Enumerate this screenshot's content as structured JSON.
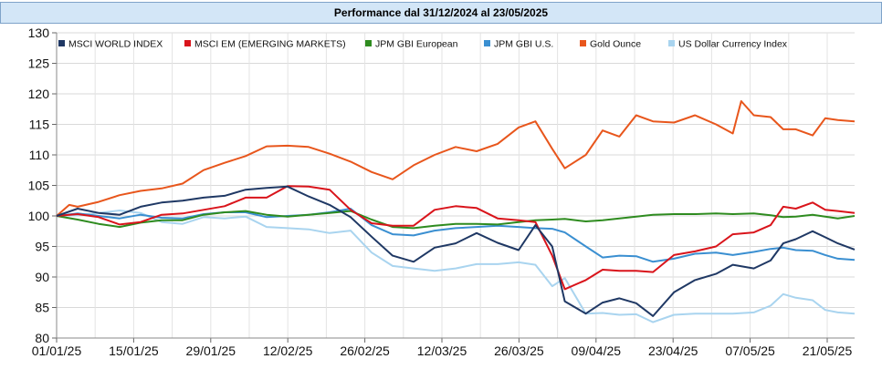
{
  "title": "Performance dal 31/12/2024 al 23/05/2025",
  "chart_data": {
    "type": "line",
    "title": "Performance dal 31/12/2024 al 23/05/2025",
    "xlabel": "",
    "ylabel": "",
    "ylim": [
      80,
      130
    ],
    "yticks": [
      80,
      85,
      90,
      95,
      100,
      105,
      110,
      115,
      120,
      125,
      130
    ],
    "xticks": [
      "01/01/25",
      "15/01/25",
      "29/01/25",
      "12/02/25",
      "26/02/25",
      "12/03/25",
      "26/03/25",
      "09/04/25",
      "23/04/25",
      "07/05/25",
      "21/05/25"
    ],
    "grid": true,
    "legend_position": "top",
    "x_start": "31/12/2024",
    "x_end": "23/05/2025",
    "series": [
      {
        "name": "MSCI WORLD INDEX",
        "color": "#1f3864",
        "points": [
          [
            0,
            100
          ],
          [
            5,
            101.2
          ],
          [
            10,
            100.5
          ],
          [
            15,
            100.2
          ],
          [
            20,
            101.5
          ],
          [
            25,
            102.2
          ],
          [
            30,
            102.5
          ],
          [
            35,
            103.0
          ],
          [
            40,
            103.3
          ],
          [
            45,
            104.3
          ],
          [
            50,
            104.6
          ],
          [
            55,
            104.8
          ],
          [
            60,
            103.2
          ],
          [
            65,
            101.8
          ],
          [
            70,
            99.8
          ],
          [
            75,
            96.6
          ],
          [
            80,
            93.5
          ],
          [
            85,
            92.5
          ],
          [
            90,
            94.8
          ],
          [
            95,
            95.5
          ],
          [
            100,
            97.2
          ],
          [
            105,
            95.6
          ],
          [
            110,
            94.4
          ],
          [
            114,
            98.5
          ],
          [
            118,
            95.0
          ],
          [
            121,
            86.0
          ],
          [
            126,
            84.0
          ],
          [
            130,
            85.8
          ],
          [
            134,
            86.5
          ],
          [
            138,
            85.7
          ],
          [
            142,
            83.6
          ],
          [
            147,
            87.5
          ],
          [
            152,
            89.5
          ],
          [
            157,
            90.5
          ],
          [
            161,
            92.0
          ],
          [
            166,
            91.4
          ],
          [
            170,
            92.7
          ],
          [
            173,
            95.5
          ],
          [
            176,
            96.2
          ],
          [
            180,
            97.5
          ],
          [
            183,
            96.5
          ],
          [
            186,
            95.5
          ],
          [
            190,
            94.5
          ]
        ]
      },
      {
        "name": "MSCI EM (EMERGING MARKETS)",
        "color": "#d9141b",
        "points": [
          [
            0,
            100
          ],
          [
            5,
            100.3
          ],
          [
            10,
            99.8
          ],
          [
            15,
            98.6
          ],
          [
            20,
            99.0
          ],
          [
            25,
            100.2
          ],
          [
            30,
            100.4
          ],
          [
            35,
            101.0
          ],
          [
            40,
            101.6
          ],
          [
            45,
            103.0
          ],
          [
            50,
            103.0
          ],
          [
            55,
            104.9
          ],
          [
            60,
            104.8
          ],
          [
            65,
            104.3
          ],
          [
            70,
            101.0
          ],
          [
            75,
            98.8
          ],
          [
            80,
            98.4
          ],
          [
            85,
            98.4
          ],
          [
            90,
            101.0
          ],
          [
            95,
            101.6
          ],
          [
            100,
            101.3
          ],
          [
            105,
            99.6
          ],
          [
            110,
            99.3
          ],
          [
            114,
            99.0
          ],
          [
            118,
            93.5
          ],
          [
            121,
            88.0
          ],
          [
            126,
            89.5
          ],
          [
            130,
            91.2
          ],
          [
            134,
            91.0
          ],
          [
            138,
            91.0
          ],
          [
            142,
            90.8
          ],
          [
            147,
            93.6
          ],
          [
            152,
            94.2
          ],
          [
            157,
            95.0
          ],
          [
            161,
            97.0
          ],
          [
            166,
            97.3
          ],
          [
            170,
            98.5
          ],
          [
            173,
            101.5
          ],
          [
            176,
            101.2
          ],
          [
            180,
            102.2
          ],
          [
            183,
            101.0
          ],
          [
            186,
            100.8
          ],
          [
            190,
            100.5
          ]
        ]
      },
      {
        "name": "JPM GBI European",
        "color": "#2e8b1f",
        "points": [
          [
            0,
            100
          ],
          [
            5,
            99.4
          ],
          [
            10,
            98.7
          ],
          [
            15,
            98.2
          ],
          [
            20,
            98.9
          ],
          [
            25,
            99.3
          ],
          [
            30,
            99.3
          ],
          [
            35,
            100.2
          ],
          [
            40,
            100.6
          ],
          [
            45,
            100.8
          ],
          [
            50,
            100.2
          ],
          [
            55,
            99.9
          ],
          [
            60,
            100.2
          ],
          [
            65,
            100.5
          ],
          [
            70,
            100.8
          ],
          [
            75,
            99.4
          ],
          [
            80,
            98.2
          ],
          [
            85,
            98.0
          ],
          [
            90,
            98.4
          ],
          [
            95,
            98.7
          ],
          [
            100,
            98.7
          ],
          [
            105,
            98.6
          ],
          [
            110,
            99.0
          ],
          [
            114,
            99.3
          ],
          [
            118,
            99.4
          ],
          [
            121,
            99.5
          ],
          [
            126,
            99.1
          ],
          [
            130,
            99.3
          ],
          [
            134,
            99.6
          ],
          [
            138,
            99.9
          ],
          [
            142,
            100.2
          ],
          [
            147,
            100.3
          ],
          [
            152,
            100.3
          ],
          [
            157,
            100.4
          ],
          [
            161,
            100.3
          ],
          [
            166,
            100.4
          ],
          [
            170,
            100.1
          ],
          [
            173,
            99.8
          ],
          [
            176,
            99.9
          ],
          [
            180,
            100.2
          ],
          [
            183,
            99.9
          ],
          [
            186,
            99.6
          ],
          [
            190,
            100.0
          ]
        ]
      },
      {
        "name": "JPM GBI U.S.",
        "color": "#3a8fd1",
        "points": [
          [
            0,
            100
          ],
          [
            5,
            100.4
          ],
          [
            10,
            100.0
          ],
          [
            15,
            99.6
          ],
          [
            20,
            100.2
          ],
          [
            25,
            99.7
          ],
          [
            30,
            99.6
          ],
          [
            35,
            100.3
          ],
          [
            40,
            100.6
          ],
          [
            45,
            100.6
          ],
          [
            50,
            99.8
          ],
          [
            55,
            100.0
          ],
          [
            60,
            100.2
          ],
          [
            65,
            100.6
          ],
          [
            70,
            101.2
          ],
          [
            75,
            98.5
          ],
          [
            80,
            97.0
          ],
          [
            85,
            96.8
          ],
          [
            90,
            97.6
          ],
          [
            95,
            98.0
          ],
          [
            100,
            98.2
          ],
          [
            105,
            98.4
          ],
          [
            110,
            98.2
          ],
          [
            114,
            98.0
          ],
          [
            118,
            97.9
          ],
          [
            121,
            97.3
          ],
          [
            126,
            95.0
          ],
          [
            130,
            93.2
          ],
          [
            134,
            93.5
          ],
          [
            138,
            93.4
          ],
          [
            142,
            92.5
          ],
          [
            147,
            93.0
          ],
          [
            152,
            93.8
          ],
          [
            157,
            94.0
          ],
          [
            161,
            93.6
          ],
          [
            166,
            94.1
          ],
          [
            170,
            94.6
          ],
          [
            173,
            94.8
          ],
          [
            176,
            94.4
          ],
          [
            180,
            94.3
          ],
          [
            183,
            93.6
          ],
          [
            186,
            93.0
          ],
          [
            190,
            92.8
          ]
        ]
      },
      {
        "name": "Gold Ounce",
        "color": "#e8561c",
        "points": [
          [
            0,
            100
          ],
          [
            3,
            101.8
          ],
          [
            5,
            101.5
          ],
          [
            10,
            102.3
          ],
          [
            15,
            103.4
          ],
          [
            20,
            104.1
          ],
          [
            25,
            104.5
          ],
          [
            30,
            105.3
          ],
          [
            35,
            107.5
          ],
          [
            40,
            108.7
          ],
          [
            45,
            109.8
          ],
          [
            50,
            111.4
          ],
          [
            55,
            111.5
          ],
          [
            60,
            111.3
          ],
          [
            65,
            110.2
          ],
          [
            70,
            108.9
          ],
          [
            75,
            107.2
          ],
          [
            80,
            106.0
          ],
          [
            85,
            108.3
          ],
          [
            90,
            110.0
          ],
          [
            95,
            111.3
          ],
          [
            100,
            110.6
          ],
          [
            105,
            111.8
          ],
          [
            110,
            114.5
          ],
          [
            114,
            115.5
          ],
          [
            118,
            111.0
          ],
          [
            121,
            107.8
          ],
          [
            126,
            110.0
          ],
          [
            130,
            114.0
          ],
          [
            134,
            113.0
          ],
          [
            138,
            116.5
          ],
          [
            142,
            115.5
          ],
          [
            147,
            115.3
          ],
          [
            152,
            116.5
          ],
          [
            157,
            115.0
          ],
          [
            161,
            113.5
          ],
          [
            163,
            118.8
          ],
          [
            166,
            116.5
          ],
          [
            170,
            116.2
          ],
          [
            173,
            114.2
          ],
          [
            176,
            114.2
          ],
          [
            180,
            113.2
          ],
          [
            183,
            116.0
          ],
          [
            186,
            115.7
          ],
          [
            190,
            115.5
          ]
        ]
      },
      {
        "name": "US Dollar Currency Index",
        "color": "#a9d4ef",
        "points": [
          [
            0,
            100
          ],
          [
            5,
            100.1
          ],
          [
            10,
            100.5
          ],
          [
            15,
            100.9
          ],
          [
            20,
            100.5
          ],
          [
            25,
            99.0
          ],
          [
            30,
            98.7
          ],
          [
            35,
            99.8
          ],
          [
            40,
            99.6
          ],
          [
            45,
            99.9
          ],
          [
            50,
            98.2
          ],
          [
            55,
            98.0
          ],
          [
            60,
            97.8
          ],
          [
            65,
            97.2
          ],
          [
            70,
            97.6
          ],
          [
            75,
            94.0
          ],
          [
            80,
            91.8
          ],
          [
            85,
            91.4
          ],
          [
            90,
            91.0
          ],
          [
            95,
            91.4
          ],
          [
            100,
            92.1
          ],
          [
            105,
            92.1
          ],
          [
            110,
            92.4
          ],
          [
            114,
            92.0
          ],
          [
            118,
            88.5
          ],
          [
            121,
            89.8
          ],
          [
            126,
            84.0
          ],
          [
            130,
            84.1
          ],
          [
            134,
            83.8
          ],
          [
            138,
            83.9
          ],
          [
            142,
            82.6
          ],
          [
            147,
            83.8
          ],
          [
            152,
            84.0
          ],
          [
            157,
            84.0
          ],
          [
            161,
            84.0
          ],
          [
            166,
            84.2
          ],
          [
            170,
            85.3
          ],
          [
            173,
            87.2
          ],
          [
            176,
            86.6
          ],
          [
            180,
            86.2
          ],
          [
            183,
            84.6
          ],
          [
            186,
            84.2
          ],
          [
            190,
            84.0
          ]
        ]
      }
    ]
  }
}
